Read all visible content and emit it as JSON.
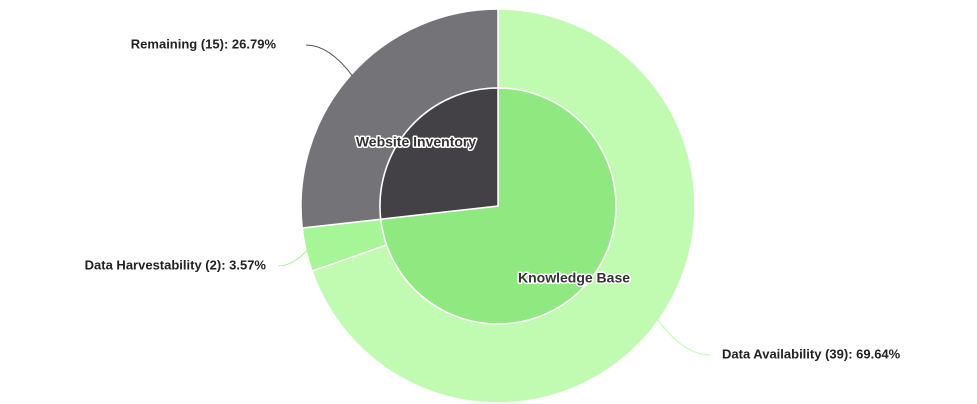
{
  "chart_data": {
    "type": "sunburst",
    "inner": {
      "categories": [
        "Knowledge Base",
        "Website Inventory"
      ],
      "values": [
        41,
        15
      ],
      "colors": [
        "#90e980",
        "#434146"
      ]
    },
    "outer": {
      "categories": [
        "Data Availability",
        "Data Harvestability",
        "Remaining"
      ],
      "values": [
        39,
        2,
        15
      ],
      "value_labels": [
        "Data Availability (39): 69.64%",
        "Data Harvestability (2): 3.57%",
        "Remaining (15): 26.79%"
      ],
      "colors": [
        "#c1fbb2",
        "#a6f597",
        "#747378"
      ]
    }
  }
}
